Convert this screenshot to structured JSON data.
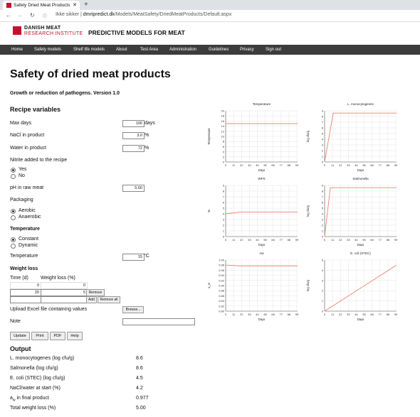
{
  "browser": {
    "tab_title": "Safety Dried Meat Products",
    "security": "Ikke sikker",
    "url_host": "dmripredict.dk",
    "url_path": "/Models/MeatSafety/DriedMeatProducts/Default.aspx"
  },
  "brand": {
    "line1": "DANISH MEAT",
    "line2": "RESEARCH INSTITUTE",
    "tagline": "PREDICTIVE MODELS FOR MEAT"
  },
  "menu": [
    "Home",
    "Safety models",
    "Shelf life models",
    "About",
    "Test Area",
    "Administration",
    "Guidelines",
    "Privacy",
    "Sign out"
  ],
  "page": {
    "title": "Safety of dried meat products",
    "subtitle": "Growth or reduction of pathogens. Version 1.0"
  },
  "recipe": {
    "heading": "Recipe variables",
    "max_days_label": "Max days",
    "max_days_value": "100",
    "max_days_unit": "days",
    "nacl_label": "NaCl in product",
    "nacl_value": "3.0",
    "nacl_unit": "%",
    "water_label": "Water in product",
    "water_value": "72",
    "water_unit": "%",
    "nitrite_label": "Nitrite added to the recipe",
    "nitrite_yes": "Yes",
    "nitrite_no": "No",
    "ph_label": "pH in raw meat",
    "ph_value": "5.60",
    "packaging_label": "Packaging",
    "pack_aerobic": "Aerobic",
    "pack_anaerobic": "Anaerobic",
    "temperature_heading": "Temperature",
    "temp_constant": "Constant",
    "temp_dynamic": "Dynamic",
    "temperature_label": "Temperature",
    "temperature_value": "15",
    "temperature_unit": "°C",
    "weightloss_heading": "Weight loss",
    "time_col": "Time (d)",
    "wl_col": "Weight loss (%)",
    "wl_rows": [
      {
        "time": "0",
        "loss": "0"
      },
      {
        "time": "20",
        "loss": "5",
        "action": "Remove"
      },
      {
        "time": "",
        "loss": "",
        "action": "Add",
        "action2": "Remove all"
      }
    ],
    "upload_label": "Upload Excel file containing values",
    "browse_label": "Browse...",
    "note_label": "Note"
  },
  "buttons": {
    "update": "Update",
    "print": "Print",
    "pdf": "PDF",
    "help": "Help"
  },
  "output": {
    "heading": "Output",
    "rows": [
      {
        "label": "L. monocytogenes (log cfu/g)",
        "value": "8.6"
      },
      {
        "label": "Salmonella (log cfu/g)",
        "value": "8.6"
      },
      {
        "label": "E. coli (STEC) (log cfu/g)",
        "value": "4.5"
      },
      {
        "label": "NaCl/water at start (%)",
        "value": "4.2"
      },
      {
        "label_main": "a",
        "label_sub": "w",
        "label_rest": " in final product",
        "value": "0.977"
      },
      {
        "label": "Total weight loss (%)",
        "value": "5.00"
      }
    ]
  },
  "line_color": "#f08070",
  "chart_data": [
    {
      "type": "line",
      "title": "Temperature",
      "xlabel": "Days",
      "ylabel": "Temperature",
      "xticks": [
        0,
        11,
        22,
        33,
        44,
        55,
        66,
        77,
        88,
        99
      ],
      "ylim": [
        0,
        20
      ],
      "yticks": [
        0,
        2,
        4,
        6,
        8,
        10,
        12,
        14,
        16,
        18,
        20
      ],
      "series": [
        {
          "x": [
            0,
            100
          ],
          "y": [
            15,
            15
          ]
        }
      ]
    },
    {
      "type": "line",
      "title": "L. monocytogenes",
      "xlabel": "Days",
      "ylabel": "log cfu/g",
      "xticks": [
        0,
        11,
        22,
        33,
        44,
        55,
        66,
        77,
        88,
        99
      ],
      "ylim": [
        0,
        9
      ],
      "yticks": [
        0,
        1,
        2,
        3,
        4,
        5,
        6,
        7,
        8,
        9
      ],
      "series": [
        {
          "x": [
            0,
            12,
            100
          ],
          "y": [
            0,
            8.6,
            8.6
          ]
        }
      ]
    },
    {
      "type": "line",
      "title": "WPS",
      "xlabel": "Days",
      "ylabel": "%",
      "xticks": [
        0,
        11,
        22,
        33,
        44,
        55,
        66,
        77,
        88,
        99
      ],
      "ylim": [
        0,
        9
      ],
      "yticks": [
        0,
        1,
        2,
        3,
        4,
        5,
        6,
        7,
        8,
        9
      ],
      "series": [
        {
          "x": [
            0,
            20,
            100
          ],
          "y": [
            4.0,
            4.3,
            4.3
          ]
        }
      ]
    },
    {
      "type": "line",
      "title": "Salmonella",
      "xlabel": "Days",
      "ylabel": "log cfu/g",
      "xticks": [
        0,
        11,
        22,
        33,
        44,
        55,
        66,
        77,
        88,
        99
      ],
      "ylim": [
        0,
        9
      ],
      "yticks": [
        0,
        1,
        2,
        3,
        4,
        5,
        6,
        7,
        8,
        9
      ],
      "series": [
        {
          "x": [
            0,
            8,
            100
          ],
          "y": [
            0,
            8.6,
            8.6
          ]
        }
      ]
    },
    {
      "type": "line",
      "title": "Aw",
      "xlabel": "Days",
      "ylabel": "a_w",
      "xticks": [
        0,
        11,
        22,
        33,
        44,
        55,
        66,
        77,
        88,
        99
      ],
      "ylim": [
        0.8,
        1.0
      ],
      "yticks": [
        0.8,
        0.82,
        0.84,
        0.86,
        0.88,
        0.9,
        0.92,
        0.94,
        0.96,
        0.98,
        1.0
      ],
      "ytick_labels": [
        "0.80",
        "0.82",
        "0.84",
        "0.86",
        "0.88",
        "0.90",
        "0.92",
        "0.94",
        "0.96",
        "0.98",
        "1.00"
      ],
      "series": [
        {
          "x": [
            0,
            20,
            100
          ],
          "y": [
            0.98,
            0.977,
            0.977
          ]
        }
      ]
    },
    {
      "type": "line",
      "title": "E. coli (STEC)",
      "xlabel": "Days",
      "ylabel": "log cfu/g",
      "xticks": [
        0,
        11,
        22,
        33,
        44,
        55,
        66,
        77,
        88,
        99
      ],
      "ylim": [
        0,
        5
      ],
      "yticks": [
        0,
        1,
        2,
        3,
        4,
        5
      ],
      "series": [
        {
          "x": [
            0,
            100
          ],
          "y": [
            0,
            4.5
          ]
        }
      ]
    }
  ]
}
